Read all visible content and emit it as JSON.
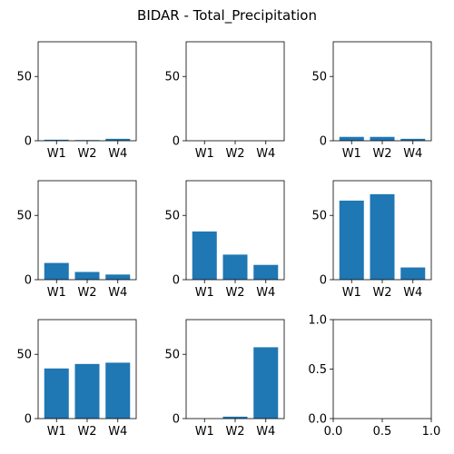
{
  "figure_title": "BIDAR - Total_Precipitation",
  "chart_data": [
    {
      "type": "bar",
      "categories": [
        "W1",
        "W2",
        "W4"
      ],
      "values": [
        0.8,
        0.5,
        1.5
      ],
      "ylim": [
        0,
        77
      ],
      "yticks": [
        0,
        50
      ],
      "ytick_labels": [
        "0",
        "50"
      ],
      "color": "#1f77b4"
    },
    {
      "type": "bar",
      "categories": [
        "W1",
        "W2",
        "W4"
      ],
      "values": [
        0,
        0,
        0
      ],
      "ylim": [
        0,
        77
      ],
      "yticks": [
        0,
        50
      ],
      "ytick_labels": [
        "0",
        "50"
      ],
      "color": "#1f77b4"
    },
    {
      "type": "bar",
      "categories": [
        "W1",
        "W2",
        "W4"
      ],
      "values": [
        3,
        3,
        1.5
      ],
      "ylim": [
        0,
        77
      ],
      "yticks": [
        0,
        50
      ],
      "ytick_labels": [
        "0",
        "50"
      ],
      "color": "#1f77b4"
    },
    {
      "type": "bar",
      "categories": [
        "W1",
        "W2",
        "W4"
      ],
      "values": [
        13,
        6,
        4
      ],
      "ylim": [
        0,
        77
      ],
      "yticks": [
        0,
        50
      ],
      "ytick_labels": [
        "0",
        "50"
      ],
      "color": "#1f77b4"
    },
    {
      "type": "bar",
      "categories": [
        "W1",
        "W2",
        "W4"
      ],
      "values": [
        37.5,
        19.5,
        11.5
      ],
      "ylim": [
        0,
        77
      ],
      "yticks": [
        0,
        50
      ],
      "ytick_labels": [
        "0",
        "50"
      ],
      "color": "#1f77b4"
    },
    {
      "type": "bar",
      "categories": [
        "W1",
        "W2",
        "W4"
      ],
      "values": [
        61.5,
        66.5,
        9.5
      ],
      "ylim": [
        0,
        77
      ],
      "yticks": [
        0,
        50
      ],
      "ytick_labels": [
        "0",
        "50"
      ],
      "color": "#1f77b4"
    },
    {
      "type": "bar",
      "categories": [
        "W1",
        "W2",
        "W4"
      ],
      "values": [
        39,
        42.5,
        43.5
      ],
      "ylim": [
        0,
        77
      ],
      "yticks": [
        0,
        50
      ],
      "ytick_labels": [
        "0",
        "50"
      ],
      "color": "#1f77b4"
    },
    {
      "type": "bar",
      "categories": [
        "W1",
        "W2",
        "W4"
      ],
      "values": [
        0,
        1.5,
        55.5
      ],
      "ylim": [
        0,
        77
      ],
      "yticks": [
        0,
        50
      ],
      "ytick_labels": [
        "0",
        "50"
      ],
      "color": "#1f77b4"
    },
    {
      "type": "empty",
      "xlim": [
        0,
        1
      ],
      "ylim": [
        0,
        1
      ],
      "xticks": [
        0,
        0.5,
        1
      ],
      "xtick_labels": [
        "0.0",
        "0.5",
        "1.0"
      ],
      "yticks": [
        0,
        0.5,
        1
      ],
      "ytick_labels": [
        "0.0",
        "0.5",
        "1.0"
      ]
    }
  ]
}
